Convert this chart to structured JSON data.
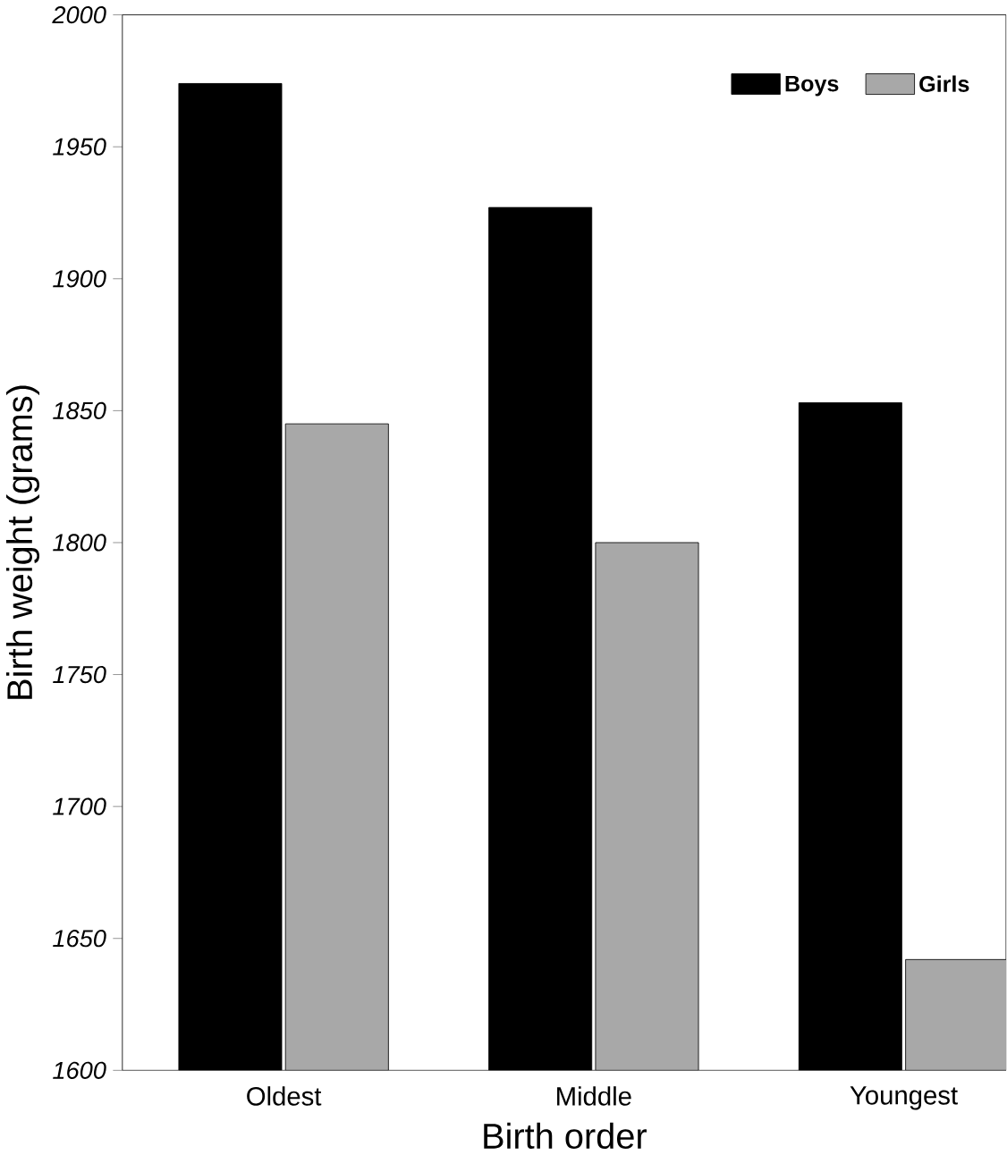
{
  "chart_data": {
    "type": "bar",
    "xlabel": "Birth order",
    "ylabel": "Birth weight (grams)",
    "categories": [
      "Oldest",
      "Middle",
      "Youngest"
    ],
    "series": [
      {
        "name": "Boys",
        "color": "#000000",
        "values": [
          1974,
          1927,
          1853
        ]
      },
      {
        "name": "Girls",
        "color": "#a8a8a8",
        "values": [
          1845,
          1800,
          1642
        ]
      }
    ],
    "ylim": [
      1600,
      2000
    ],
    "yticks": [
      1600,
      1650,
      1700,
      1750,
      1800,
      1850,
      1900,
      1950,
      2000
    ],
    "legend": "top right",
    "grid": false
  }
}
